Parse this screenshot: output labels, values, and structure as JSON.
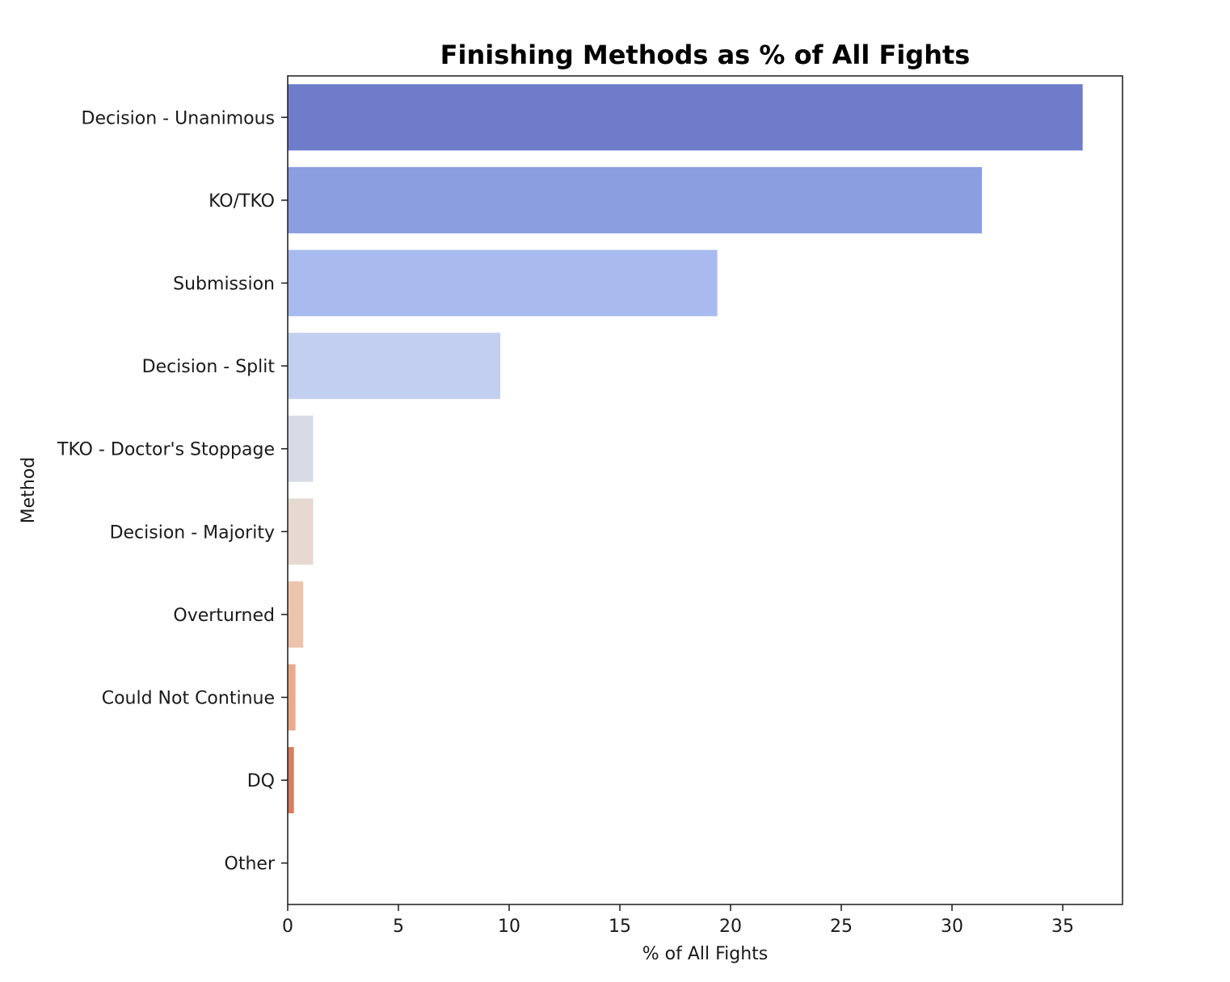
{
  "chart_data": {
    "type": "bar",
    "orientation": "horizontal",
    "title": "Finishing Methods as % of All Fights",
    "xlabel": "% of All Fights",
    "ylabel": "Method",
    "xlim": [
      0,
      37.7
    ],
    "xticks": [
      0,
      5,
      10,
      15,
      20,
      25,
      30,
      35
    ],
    "grid": false,
    "categories": [
      "Decision - Unanimous",
      "KO/TKO",
      "Submission",
      "Decision - Split",
      "TKO - Doctor's Stoppage",
      "Decision - Majority",
      "Overturned",
      "Could Not Continue",
      "DQ",
      "Other"
    ],
    "values": [
      35.9,
      31.35,
      19.4,
      9.6,
      1.15,
      1.15,
      0.7,
      0.35,
      0.28,
      0.0
    ],
    "colors": [
      "#6e7cc9",
      "#8a9ee0",
      "#a8baee",
      "#c2cff0",
      "#d7dbe6",
      "#e6d9d2",
      "#ecc4ac",
      "#eaaa8a",
      "#da7c5e",
      "#c75a48"
    ]
  }
}
